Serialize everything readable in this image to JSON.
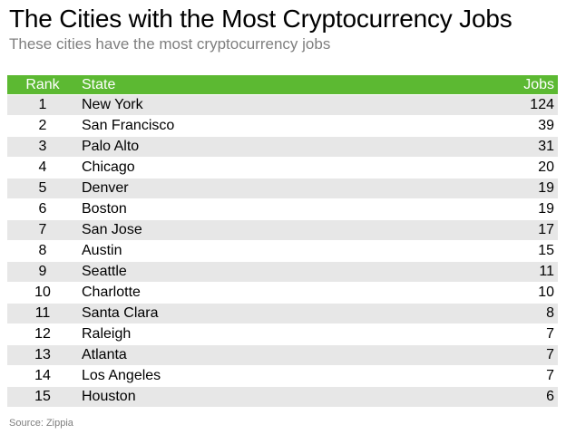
{
  "title": "The Cities with the Most Cryptocurrency Jobs",
  "subtitle": "These cities have the most cryptocurrency jobs",
  "table": {
    "header_color": "#5cb932",
    "stripe_color": "#e7e7e7",
    "columns": [
      "Rank",
      "State",
      "Jobs"
    ],
    "rows": [
      {
        "rank": "1",
        "state": "New York",
        "jobs": "124"
      },
      {
        "rank": "2",
        "state": "San Francisco",
        "jobs": "39"
      },
      {
        "rank": "3",
        "state": "Palo Alto",
        "jobs": "31"
      },
      {
        "rank": "4",
        "state": "Chicago",
        "jobs": "20"
      },
      {
        "rank": "5",
        "state": "Denver",
        "jobs": "19"
      },
      {
        "rank": "6",
        "state": "Boston",
        "jobs": "19"
      },
      {
        "rank": "7",
        "state": "San Jose",
        "jobs": "17"
      },
      {
        "rank": "8",
        "state": "Austin",
        "jobs": "15"
      },
      {
        "rank": "9",
        "state": "Seattle",
        "jobs": "11"
      },
      {
        "rank": "10",
        "state": "Charlotte",
        "jobs": "10"
      },
      {
        "rank": "11",
        "state": "Santa Clara",
        "jobs": "8"
      },
      {
        "rank": "12",
        "state": "Raleigh",
        "jobs": "7"
      },
      {
        "rank": "13",
        "state": "Atlanta",
        "jobs": "7"
      },
      {
        "rank": "14",
        "state": "Los Angeles",
        "jobs": "7"
      },
      {
        "rank": "15",
        "state": "Houston",
        "jobs": "6"
      }
    ]
  },
  "source": "Source: Zippia"
}
